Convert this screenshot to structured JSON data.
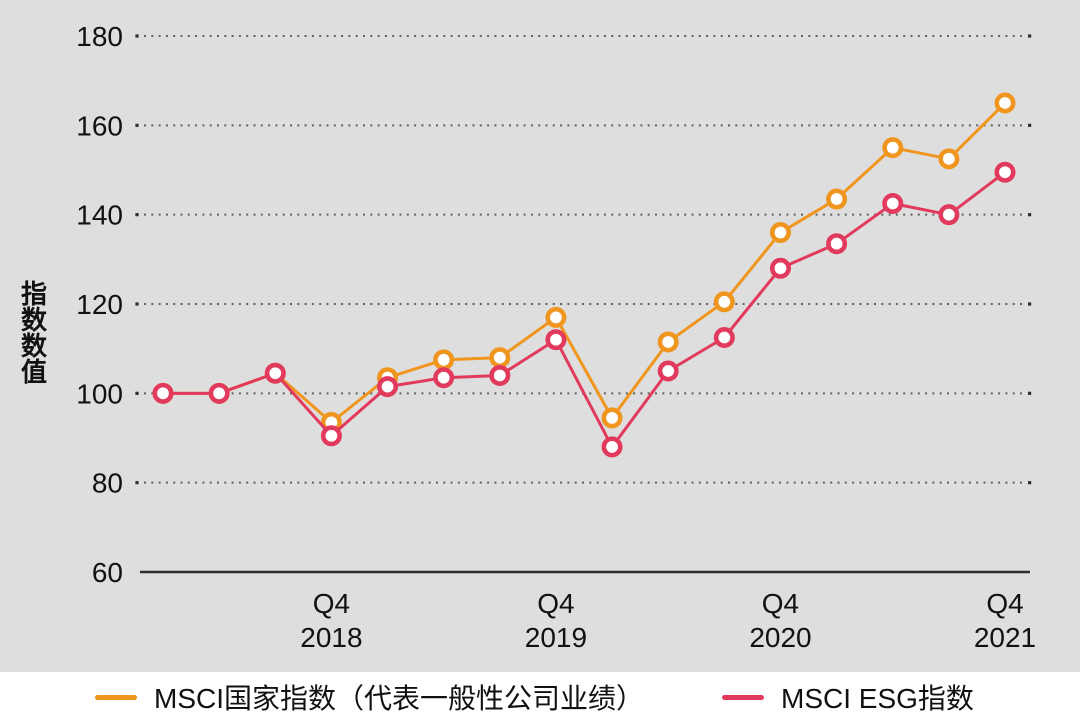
{
  "figure": {
    "panel_background": "#dedede",
    "footer_background": "#ffffff",
    "text_color": "#111111",
    "grid_dot_color": "#606060",
    "grid_end_dot_color": "#2f2f2f",
    "axis_line_color": "#2e2e2e",
    "marker_fill": "#ffffff"
  },
  "chart_data": {
    "type": "line",
    "title": "",
    "xlabel": "",
    "ylabel": "指数数值",
    "ylim": [
      60,
      185
    ],
    "yticks": [
      60,
      80,
      100,
      120,
      140,
      160,
      180
    ],
    "num_points": 16,
    "x_frequency": "quarterly",
    "x_tick_labels": [
      {
        "index": 3,
        "top": "Q4",
        "bottom": "2018"
      },
      {
        "index": 7,
        "top": "Q4",
        "bottom": "2019"
      },
      {
        "index": 11,
        "top": "Q4",
        "bottom": "2020"
      },
      {
        "index": 15,
        "top": "Q4",
        "bottom": "2021"
      }
    ],
    "grid": "horizontal-dotted",
    "legend_position": "bottom",
    "series": [
      {
        "name": "MSCI国家指数（代表一般性公司业绩）",
        "color": "#F0961E",
        "values": [
          100,
          100,
          104.5,
          93.5,
          103.5,
          107.5,
          108,
          117,
          94.5,
          111.5,
          120.5,
          136,
          143.5,
          155,
          152.5,
          165
        ]
      },
      {
        "name": "MSCI ESG指数",
        "color": "#E23A5C",
        "values": [
          100,
          100,
          104.5,
          90.5,
          101.5,
          103.5,
          104,
          112,
          88,
          105,
          112.5,
          128,
          133.5,
          142.5,
          140,
          149.5
        ]
      }
    ]
  }
}
